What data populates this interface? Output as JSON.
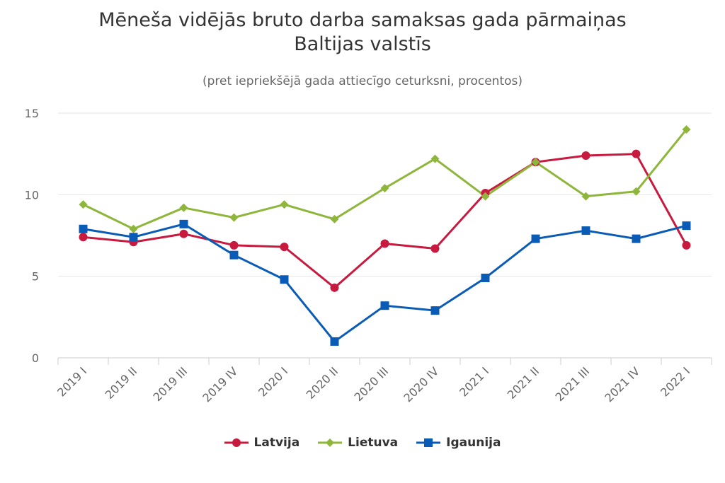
{
  "title_line1": "Mēneša vidējās bruto darba samaksas gada pārmaiņas",
  "title_line2": "Baltijas valstīs",
  "subtitle": "(pret iepriekšējā gada attiecīgo ceturksni, procentos)",
  "chart_data": {
    "type": "line",
    "categories": [
      "2019 I",
      "2019 II",
      "2019 III",
      "2019 IV",
      "2020 I",
      "2020 II",
      "2020 III",
      "2020 IV",
      "2021 I",
      "2021 II",
      "2021 III",
      "2021 IV",
      "2022 I"
    ],
    "ylim": [
      0,
      15
    ],
    "yticks": [
      0,
      5,
      10,
      15
    ],
    "grid": true,
    "legend": "bottom-center",
    "series": [
      {
        "name": "Latvija",
        "color": "#c8193e",
        "marker": "circle",
        "values": [
          7.4,
          7.1,
          7.6,
          6.9,
          6.8,
          4.3,
          7.0,
          6.7,
          10.1,
          12.0,
          12.4,
          12.5,
          6.9
        ]
      },
      {
        "name": "Lietuva",
        "color": "#8db63a",
        "marker": "diamond",
        "values": [
          9.4,
          7.9,
          9.2,
          8.6,
          9.4,
          8.5,
          10.4,
          12.2,
          9.9,
          12.0,
          9.9,
          10.2,
          14.0
        ]
      },
      {
        "name": "Igaunija",
        "color": "#0a5bb5",
        "marker": "square",
        "values": [
          7.9,
          7.4,
          8.2,
          6.3,
          4.8,
          1.0,
          3.2,
          2.9,
          4.9,
          7.3,
          7.8,
          7.3,
          8.1
        ]
      }
    ]
  }
}
